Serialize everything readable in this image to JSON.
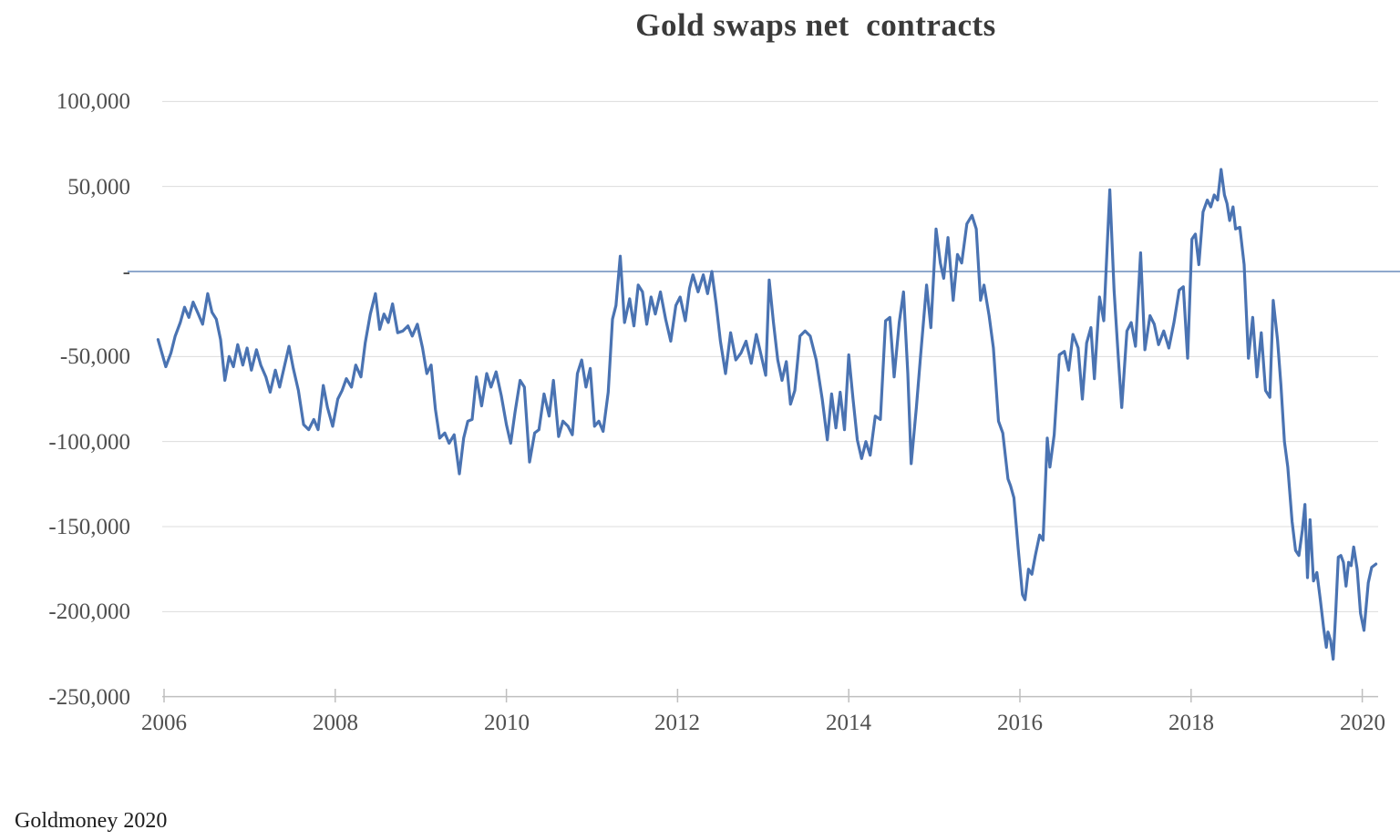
{
  "chart_data": {
    "type": "line",
    "title": "Gold swaps net  contracts",
    "source_note": "Goldmoney 2020",
    "legend": false,
    "grid": true,
    "xlim": [
      2005.9,
      2020.45
    ],
    "ylim": [
      -250000,
      100000
    ],
    "x_ticks": [
      2006,
      2008,
      2010,
      2012,
      2014,
      2016,
      2018,
      2020
    ],
    "x_tick_labels": [
      "2006",
      "2008",
      "2010",
      "2012",
      "2014",
      "2016",
      "2018",
      "2020"
    ],
    "y_ticks": [
      100000,
      50000,
      0,
      -50000,
      -100000,
      -150000,
      -200000,
      -250000
    ],
    "y_tick_labels": [
      "100,000",
      "50,000",
      "-",
      "-50,000",
      "-100,000",
      "-150,000",
      "-200,000",
      "-250,000"
    ],
    "zero_line_color": "#8fa9cd",
    "grid_color": "#dcdcdc",
    "axis_color": "#bfbfbf",
    "series": [
      {
        "name": "Gold swaps net contracts",
        "color": "#4a73b2",
        "points": [
          [
            2005.93,
            -40000
          ],
          [
            2006.02,
            -56000
          ],
          [
            2006.08,
            -48000
          ],
          [
            2006.13,
            -38000
          ],
          [
            2006.19,
            -30000
          ],
          [
            2006.24,
            -21000
          ],
          [
            2006.29,
            -27000
          ],
          [
            2006.34,
            -18000
          ],
          [
            2006.4,
            -25000
          ],
          [
            2006.45,
            -31000
          ],
          [
            2006.51,
            -13000
          ],
          [
            2006.56,
            -24000
          ],
          [
            2006.61,
            -28000
          ],
          [
            2006.66,
            -40000
          ],
          [
            2006.71,
            -64000
          ],
          [
            2006.76,
            -50000
          ],
          [
            2006.81,
            -56000
          ],
          [
            2006.86,
            -43000
          ],
          [
            2006.92,
            -55000
          ],
          [
            2006.97,
            -45000
          ],
          [
            2007.02,
            -58000
          ],
          [
            2007.08,
            -46000
          ],
          [
            2007.13,
            -55000
          ],
          [
            2007.19,
            -62000
          ],
          [
            2007.24,
            -71000
          ],
          [
            2007.3,
            -58000
          ],
          [
            2007.35,
            -68000
          ],
          [
            2007.4,
            -57000
          ],
          [
            2007.46,
            -44000
          ],
          [
            2007.51,
            -57000
          ],
          [
            2007.57,
            -70000
          ],
          [
            2007.63,
            -90000
          ],
          [
            2007.69,
            -93000
          ],
          [
            2007.75,
            -87000
          ],
          [
            2007.8,
            -93000
          ],
          [
            2007.86,
            -67000
          ],
          [
            2007.91,
            -80000
          ],
          [
            2007.97,
            -91000
          ],
          [
            2008.03,
            -75000
          ],
          [
            2008.08,
            -70000
          ],
          [
            2008.13,
            -63000
          ],
          [
            2008.19,
            -68000
          ],
          [
            2008.24,
            -55000
          ],
          [
            2008.3,
            -62000
          ],
          [
            2008.35,
            -42000
          ],
          [
            2008.41,
            -25000
          ],
          [
            2008.47,
            -13000
          ],
          [
            2008.52,
            -34000
          ],
          [
            2008.57,
            -25000
          ],
          [
            2008.62,
            -30000
          ],
          [
            2008.67,
            -19000
          ],
          [
            2008.73,
            -36000
          ],
          [
            2008.79,
            -35000
          ],
          [
            2008.85,
            -32000
          ],
          [
            2008.9,
            -38000
          ],
          [
            2008.96,
            -31000
          ],
          [
            2009.02,
            -45000
          ],
          [
            2009.07,
            -60000
          ],
          [
            2009.12,
            -55000
          ],
          [
            2009.17,
            -81000
          ],
          [
            2009.22,
            -98000
          ],
          [
            2009.28,
            -95000
          ],
          [
            2009.33,
            -101000
          ],
          [
            2009.39,
            -96000
          ],
          [
            2009.45,
            -119000
          ],
          [
            2009.5,
            -98000
          ],
          [
            2009.55,
            -88000
          ],
          [
            2009.6,
            -87000
          ],
          [
            2009.65,
            -62000
          ],
          [
            2009.71,
            -79000
          ],
          [
            2009.77,
            -60000
          ],
          [
            2009.82,
            -68000
          ],
          [
            2009.88,
            -59000
          ],
          [
            2009.94,
            -73000
          ],
          [
            2010.0,
            -90000
          ],
          [
            2010.05,
            -101000
          ],
          [
            2010.1,
            -83000
          ],
          [
            2010.16,
            -64000
          ],
          [
            2010.21,
            -68000
          ],
          [
            2010.27,
            -112000
          ],
          [
            2010.33,
            -95000
          ],
          [
            2010.38,
            -93000
          ],
          [
            2010.44,
            -72000
          ],
          [
            2010.5,
            -85000
          ],
          [
            2010.55,
            -64000
          ],
          [
            2010.61,
            -97000
          ],
          [
            2010.66,
            -88000
          ],
          [
            2010.72,
            -91000
          ],
          [
            2010.77,
            -96000
          ],
          [
            2010.83,
            -60000
          ],
          [
            2010.88,
            -52000
          ],
          [
            2010.93,
            -68000
          ],
          [
            2010.98,
            -57000
          ],
          [
            2011.03,
            -91000
          ],
          [
            2011.08,
            -88000
          ],
          [
            2011.13,
            -94000
          ],
          [
            2011.19,
            -71000
          ],
          [
            2011.24,
            -28000
          ],
          [
            2011.28,
            -20000
          ],
          [
            2011.33,
            9000
          ],
          [
            2011.38,
            -30000
          ],
          [
            2011.44,
            -16000
          ],
          [
            2011.49,
            -32000
          ],
          [
            2011.54,
            -8000
          ],
          [
            2011.59,
            -12000
          ],
          [
            2011.64,
            -31000
          ],
          [
            2011.69,
            -15000
          ],
          [
            2011.74,
            -25000
          ],
          [
            2011.8,
            -12000
          ],
          [
            2011.86,
            -28000
          ],
          [
            2011.92,
            -41000
          ],
          [
            2011.98,
            -20000
          ],
          [
            2012.03,
            -15000
          ],
          [
            2012.09,
            -29000
          ],
          [
            2012.14,
            -10000
          ],
          [
            2012.18,
            -2000
          ],
          [
            2012.24,
            -12000
          ],
          [
            2012.3,
            -2000
          ],
          [
            2012.35,
            -13000
          ],
          [
            2012.4,
            0
          ],
          [
            2012.45,
            -19000
          ],
          [
            2012.5,
            -41000
          ],
          [
            2012.56,
            -60000
          ],
          [
            2012.62,
            -36000
          ],
          [
            2012.68,
            -52000
          ],
          [
            2012.74,
            -48000
          ],
          [
            2012.8,
            -41000
          ],
          [
            2012.86,
            -54000
          ],
          [
            2012.92,
            -37000
          ],
          [
            2012.98,
            -50000
          ],
          [
            2013.03,
            -61000
          ],
          [
            2013.07,
            -5000
          ],
          [
            2013.12,
            -30000
          ],
          [
            2013.17,
            -52000
          ],
          [
            2013.22,
            -64000
          ],
          [
            2013.27,
            -53000
          ],
          [
            2013.32,
            -78000
          ],
          [
            2013.37,
            -70000
          ],
          [
            2013.43,
            -38000
          ],
          [
            2013.49,
            -35000
          ],
          [
            2013.55,
            -38000
          ],
          [
            2013.62,
            -52000
          ],
          [
            2013.69,
            -75000
          ],
          [
            2013.75,
            -99000
          ],
          [
            2013.8,
            -72000
          ],
          [
            2013.85,
            -92000
          ],
          [
            2013.9,
            -71000
          ],
          [
            2013.95,
            -93000
          ],
          [
            2014.0,
            -49000
          ],
          [
            2014.05,
            -75000
          ],
          [
            2014.1,
            -99000
          ],
          [
            2014.15,
            -110000
          ],
          [
            2014.2,
            -100000
          ],
          [
            2014.25,
            -108000
          ],
          [
            2014.31,
            -85000
          ],
          [
            2014.37,
            -87000
          ],
          [
            2014.43,
            -29000
          ],
          [
            2014.48,
            -27000
          ],
          [
            2014.53,
            -62000
          ],
          [
            2014.59,
            -30000
          ],
          [
            2014.64,
            -12000
          ],
          [
            2014.69,
            -60000
          ],
          [
            2014.73,
            -113000
          ],
          [
            2014.79,
            -80000
          ],
          [
            2014.84,
            -49000
          ],
          [
            2014.91,
            -8000
          ],
          [
            2014.96,
            -33000
          ],
          [
            2015.02,
            25000
          ],
          [
            2015.07,
            5000
          ],
          [
            2015.11,
            -4000
          ],
          [
            2015.16,
            20000
          ],
          [
            2015.22,
            -17000
          ],
          [
            2015.27,
            10000
          ],
          [
            2015.32,
            5000
          ],
          [
            2015.38,
            28000
          ],
          [
            2015.44,
            33000
          ],
          [
            2015.49,
            25000
          ],
          [
            2015.54,
            -17000
          ],
          [
            2015.58,
            -8000
          ],
          [
            2015.64,
            -26000
          ],
          [
            2015.69,
            -45000
          ],
          [
            2015.75,
            -88000
          ],
          [
            2015.8,
            -95000
          ],
          [
            2015.86,
            -122000
          ],
          [
            2015.89,
            -126000
          ],
          [
            2015.93,
            -133000
          ],
          [
            2015.98,
            -163000
          ],
          [
            2016.03,
            -190000
          ],
          [
            2016.06,
            -193000
          ],
          [
            2016.1,
            -175000
          ],
          [
            2016.14,
            -178000
          ],
          [
            2016.18,
            -167000
          ],
          [
            2016.23,
            -155000
          ],
          [
            2016.27,
            -158000
          ],
          [
            2016.32,
            -98000
          ],
          [
            2016.35,
            -115000
          ],
          [
            2016.4,
            -96000
          ],
          [
            2016.46,
            -49000
          ],
          [
            2016.52,
            -47000
          ],
          [
            2016.57,
            -58000
          ],
          [
            2016.62,
            -37000
          ],
          [
            2016.68,
            -45000
          ],
          [
            2016.73,
            -75000
          ],
          [
            2016.78,
            -42000
          ],
          [
            2016.83,
            -33000
          ],
          [
            2016.87,
            -63000
          ],
          [
            2016.93,
            -15000
          ],
          [
            2016.98,
            -29000
          ],
          [
            2017.05,
            48000
          ],
          [
            2017.1,
            -11000
          ],
          [
            2017.15,
            -51000
          ],
          [
            2017.19,
            -80000
          ],
          [
            2017.25,
            -35000
          ],
          [
            2017.3,
            -30000
          ],
          [
            2017.35,
            -44000
          ],
          [
            2017.41,
            11000
          ],
          [
            2017.46,
            -46000
          ],
          [
            2017.52,
            -26000
          ],
          [
            2017.57,
            -31000
          ],
          [
            2017.62,
            -43000
          ],
          [
            2017.68,
            -35000
          ],
          [
            2017.74,
            -45000
          ],
          [
            2017.8,
            -30000
          ],
          [
            2017.86,
            -11000
          ],
          [
            2017.91,
            -9000
          ],
          [
            2017.96,
            -51000
          ],
          [
            2018.01,
            19000
          ],
          [
            2018.05,
            22000
          ],
          [
            2018.09,
            4000
          ],
          [
            2018.14,
            35000
          ],
          [
            2018.19,
            42000
          ],
          [
            2018.23,
            38000
          ],
          [
            2018.27,
            45000
          ],
          [
            2018.31,
            42000
          ],
          [
            2018.35,
            60000
          ],
          [
            2018.39,
            45000
          ],
          [
            2018.42,
            40000
          ],
          [
            2018.45,
            30000
          ],
          [
            2018.49,
            38000
          ],
          [
            2018.52,
            25000
          ],
          [
            2018.57,
            26000
          ],
          [
            2018.62,
            4000
          ],
          [
            2018.67,
            -51000
          ],
          [
            2018.72,
            -27000
          ],
          [
            2018.77,
            -62000
          ],
          [
            2018.82,
            -36000
          ],
          [
            2018.87,
            -70000
          ],
          [
            2018.92,
            -74000
          ],
          [
            2018.96,
            -17000
          ],
          [
            2019.01,
            -40000
          ],
          [
            2019.05,
            -67000
          ],
          [
            2019.09,
            -100000
          ],
          [
            2019.13,
            -115000
          ],
          [
            2019.18,
            -147000
          ],
          [
            2019.22,
            -164000
          ],
          [
            2019.26,
            -167000
          ],
          [
            2019.3,
            -152000
          ],
          [
            2019.33,
            -137000
          ],
          [
            2019.36,
            -180000
          ],
          [
            2019.39,
            -146000
          ],
          [
            2019.43,
            -182000
          ],
          [
            2019.47,
            -177000
          ],
          [
            2019.51,
            -193000
          ],
          [
            2019.55,
            -210000
          ],
          [
            2019.58,
            -221000
          ],
          [
            2019.6,
            -212000
          ],
          [
            2019.63,
            -217000
          ],
          [
            2019.66,
            -228000
          ],
          [
            2019.69,
            -200000
          ],
          [
            2019.72,
            -168000
          ],
          [
            2019.75,
            -167000
          ],
          [
            2019.78,
            -171000
          ],
          [
            2019.81,
            -185000
          ],
          [
            2019.84,
            -171000
          ],
          [
            2019.87,
            -173000
          ],
          [
            2019.9,
            -162000
          ],
          [
            2019.94,
            -175000
          ],
          [
            2019.98,
            -201000
          ],
          [
            2020.02,
            -211000
          ],
          [
            2020.07,
            -183000
          ],
          [
            2020.11,
            -174000
          ],
          [
            2020.16,
            -172000
          ]
        ]
      }
    ]
  }
}
